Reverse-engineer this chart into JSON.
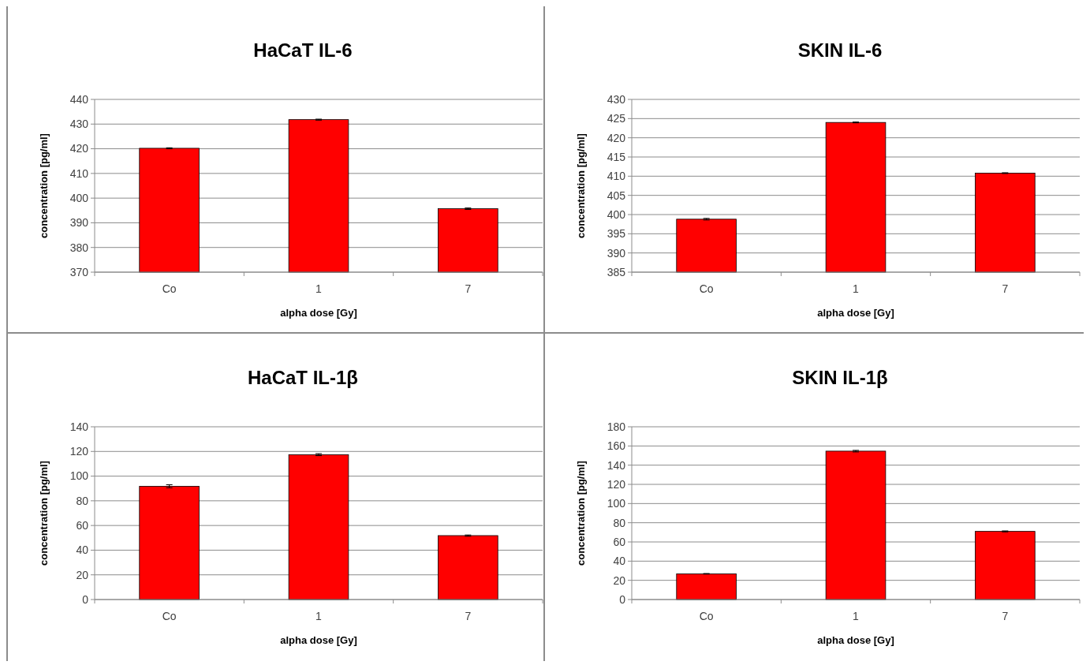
{
  "chart_data": [
    {
      "type": "bar",
      "title": "HaCaT IL-6",
      "xlabel": "alpha dose [Gy]",
      "ylabel": "concentration [pg/ml]",
      "categories": [
        "Co",
        "1",
        "7"
      ],
      "values": [
        420.2,
        431.8,
        395.7
      ],
      "errors": [
        0.2,
        0.2,
        0.3
      ],
      "color": "#ff0000",
      "ylim": [
        370,
        440
      ],
      "yticks": [
        370,
        380,
        390,
        400,
        410,
        420,
        430,
        440
      ],
      "grid": "y"
    },
    {
      "type": "bar",
      "title": "SKIN IL-6",
      "xlabel": "alpha dose [Gy]",
      "ylabel": "concentration [pg/ml]",
      "categories": [
        "Co",
        "1",
        "7"
      ],
      "values": [
        398.8,
        424.0,
        410.8
      ],
      "errors": [
        0.2,
        0.1,
        0.1
      ],
      "color": "#ff0000",
      "ylim": [
        385,
        430
      ],
      "yticks": [
        385,
        390,
        395,
        400,
        405,
        410,
        415,
        420,
        425,
        430
      ],
      "grid": "y"
    },
    {
      "type": "bar",
      "title": "HaCaT IL-1β",
      "xlabel": "alpha dose [Gy]",
      "ylabel": "concentration [pg/ml]",
      "categories": [
        "Co",
        "1",
        "7"
      ],
      "values": [
        91.8,
        117.4,
        51.8
      ],
      "errors": [
        1.2,
        0.8,
        0.5
      ],
      "color": "#ff0000",
      "ylim": [
        0,
        140
      ],
      "yticks": [
        0,
        20,
        40,
        60,
        80,
        100,
        120,
        140
      ],
      "grid": "y"
    },
    {
      "type": "bar",
      "title": "SKIN IL-1β",
      "xlabel": "alpha dose [Gy]",
      "ylabel": "concentration [pg/ml]",
      "categories": [
        "Co",
        "1",
        "7"
      ],
      "values": [
        26.8,
        154.6,
        71.0
      ],
      "errors": [
        0.3,
        0.8,
        0.5
      ],
      "color": "#ff0000",
      "ylim": [
        0,
        180
      ],
      "yticks": [
        0,
        20,
        40,
        60,
        80,
        100,
        120,
        140,
        160,
        180
      ],
      "grid": "y"
    }
  ]
}
